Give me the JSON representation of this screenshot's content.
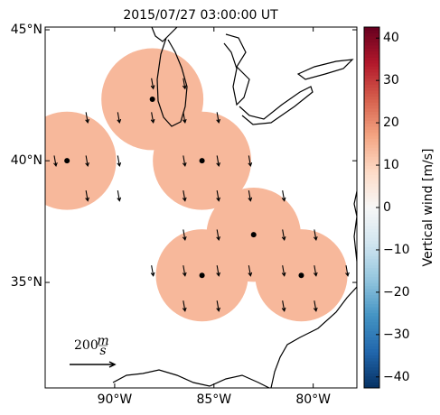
{
  "chart_data": {
    "type": "radar-map",
    "title": "2015/07/27 03:00:00 UT",
    "xlim": [
      -93.5,
      -77.8
    ],
    "ylim": [
      30.4,
      45.1
    ],
    "xticks": [
      {
        "value": -90,
        "label": "90°W"
      },
      {
        "value": -85,
        "label": "85°W"
      },
      {
        "value": -80,
        "label": "80°W"
      }
    ],
    "yticks": [
      {
        "value": 35,
        "label": "35°N"
      },
      {
        "value": 40,
        "label": "40°N"
      },
      {
        "value": 45,
        "label": "45°N"
      }
    ],
    "radars": [
      {
        "lon": -88.1,
        "lat": 42.4
      },
      {
        "lon": -92.4,
        "lat": 40.0
      },
      {
        "lon": -85.6,
        "lat": 40.0
      },
      {
        "lon": -83.0,
        "lat": 37.0
      },
      {
        "lon": -85.6,
        "lat": 35.3
      },
      {
        "lon": -80.6,
        "lat": 35.3
      }
    ],
    "range_deg": 1.95,
    "field_value": 14,
    "vectors": [
      {
        "lon": -88.1,
        "lat": 43.0,
        "u": 8,
        "v": -46
      },
      {
        "lon": -86.5,
        "lat": 43.0,
        "u": 8,
        "v": -46
      },
      {
        "lon": -91.4,
        "lat": 41.7,
        "u": 8,
        "v": -46
      },
      {
        "lon": -89.8,
        "lat": 41.7,
        "u": 8,
        "v": -46
      },
      {
        "lon": -88.1,
        "lat": 41.7,
        "u": 8,
        "v": -46
      },
      {
        "lon": -86.5,
        "lat": 41.7,
        "u": 8,
        "v": -46
      },
      {
        "lon": -84.8,
        "lat": 41.7,
        "u": 8,
        "v": -46
      },
      {
        "lon": -93.0,
        "lat": 40.0,
        "u": 8,
        "v": -46
      },
      {
        "lon": -91.4,
        "lat": 40.0,
        "u": 8,
        "v": -46
      },
      {
        "lon": -89.8,
        "lat": 40.0,
        "u": 8,
        "v": -46
      },
      {
        "lon": -86.5,
        "lat": 40.0,
        "u": 8,
        "v": -46
      },
      {
        "lon": -84.8,
        "lat": 40.0,
        "u": 8,
        "v": -46
      },
      {
        "lon": -83.2,
        "lat": 40.0,
        "u": 8,
        "v": -46
      },
      {
        "lon": -91.4,
        "lat": 38.6,
        "u": 8,
        "v": -46
      },
      {
        "lon": -89.8,
        "lat": 38.6,
        "u": 8,
        "v": -46
      },
      {
        "lon": -86.5,
        "lat": 38.6,
        "u": 8,
        "v": -46
      },
      {
        "lon": -84.8,
        "lat": 38.6,
        "u": 8,
        "v": -46
      },
      {
        "lon": -83.2,
        "lat": 38.6,
        "u": 8,
        "v": -46
      },
      {
        "lon": -81.5,
        "lat": 38.6,
        "u": 8,
        "v": -46
      },
      {
        "lon": -86.5,
        "lat": 37.0,
        "u": 8,
        "v": -46
      },
      {
        "lon": -84.8,
        "lat": 37.0,
        "u": 8,
        "v": -46
      },
      {
        "lon": -81.5,
        "lat": 37.0,
        "u": 8,
        "v": -46
      },
      {
        "lon": -79.9,
        "lat": 37.0,
        "u": 8,
        "v": -46
      },
      {
        "lon": -88.1,
        "lat": 35.5,
        "u": 8,
        "v": -46
      },
      {
        "lon": -86.5,
        "lat": 35.5,
        "u": 8,
        "v": -46
      },
      {
        "lon": -84.8,
        "lat": 35.5,
        "u": 8,
        "v": -46
      },
      {
        "lon": -83.2,
        "lat": 35.5,
        "u": 8,
        "v": -46
      },
      {
        "lon": -81.5,
        "lat": 35.5,
        "u": 8,
        "v": -46
      },
      {
        "lon": -79.9,
        "lat": 35.5,
        "u": 8,
        "v": -46
      },
      {
        "lon": -78.3,
        "lat": 35.5,
        "u": 8,
        "v": -46
      },
      {
        "lon": -86.5,
        "lat": 34.0,
        "u": 8,
        "v": -46
      },
      {
        "lon": -84.8,
        "lat": 34.0,
        "u": 8,
        "v": -46
      },
      {
        "lon": -81.5,
        "lat": 34.0,
        "u": 8,
        "v": -46
      },
      {
        "lon": -79.9,
        "lat": 34.0,
        "u": 8,
        "v": -46
      }
    ],
    "vector_key": {
      "value": 200,
      "unit_top": "m",
      "unit_bottom": "s"
    },
    "colorbar": {
      "label": "Vertical wind [m/s]",
      "clim": [
        -42.6,
        42.6
      ],
      "ticks": [
        {
          "value": -40,
          "label": "−40"
        },
        {
          "value": -30,
          "label": "−30"
        },
        {
          "value": -20,
          "label": "−20"
        },
        {
          "value": -10,
          "label": "−10"
        },
        0,
        10,
        20,
        30,
        40
      ],
      "colormap": [
        "#053061",
        "#2166ac",
        "#4393c3",
        "#92c5de",
        "#d1e5f0",
        "#f7f7f7",
        "#fddbc7",
        "#f4a582",
        "#d6604d",
        "#b2182b",
        "#67001f"
      ]
    }
  }
}
